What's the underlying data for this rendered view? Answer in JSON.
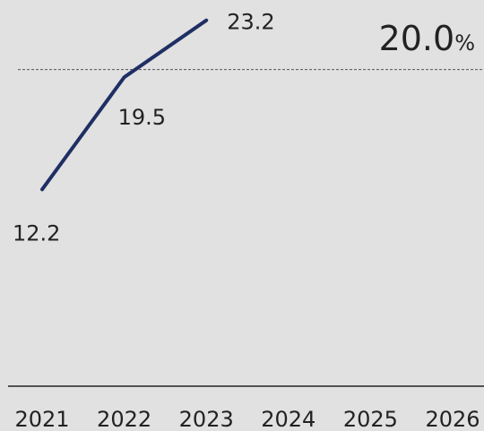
{
  "chart_data": {
    "type": "line",
    "categories": [
      "2021",
      "2022",
      "2023",
      "2024",
      "2025",
      "2026"
    ],
    "series": [
      {
        "values": [
          12.2,
          19.5,
          23.2,
          null,
          null,
          null
        ]
      }
    ],
    "data_labels": [
      "12.2",
      "19.5",
      "23.2"
    ],
    "reference_line": {
      "value": 20.0,
      "label": "20.0",
      "unit": "%"
    },
    "ylim": [
      0,
      25
    ],
    "grid": false,
    "colors": {
      "line": "#1f2f64",
      "reference": "#555555",
      "background": "#e1e1e1",
      "axis": "#222222"
    }
  }
}
